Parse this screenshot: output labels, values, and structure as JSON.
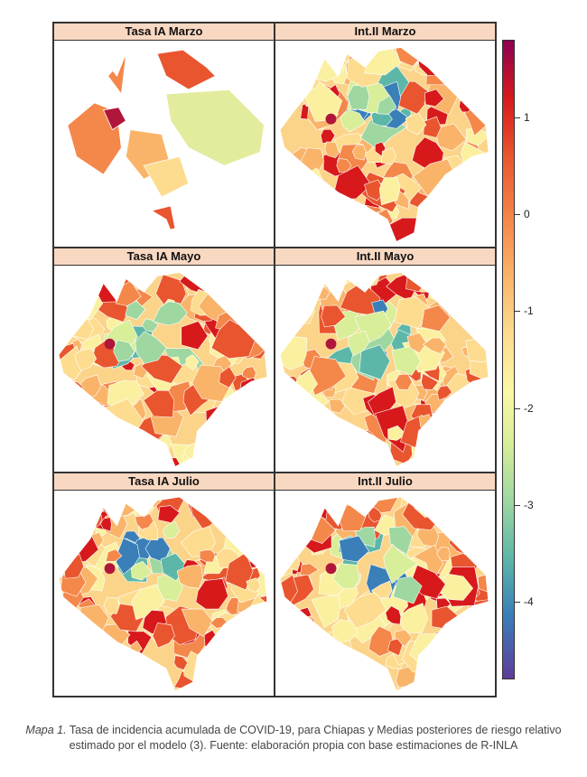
{
  "panels": [
    {
      "title": "Tasa IA Marzo",
      "variant": "marzo"
    },
    {
      "title": "Int.II Marzo",
      "variant": "full"
    },
    {
      "title": "Tasa IA Mayo",
      "variant": "full"
    },
    {
      "title": "Int.II Mayo",
      "variant": "full"
    },
    {
      "title": "Tasa IA Julio",
      "variant": "full"
    },
    {
      "title": "Int.II Julio",
      "variant": "full"
    }
  ],
  "legend": {
    "ticks": [
      "1",
      "0",
      "-1",
      "-2",
      "-3",
      "-4"
    ],
    "range": [
      -4.8,
      1.8
    ],
    "colors": [
      "#8e0152",
      "#d7191c",
      "#f4874a",
      "#fddc8f",
      "#d8ee99",
      "#5db7a8",
      "#3a7fb8",
      "#5e3c99"
    ]
  },
  "caption": {
    "lead": "Mapa 1.",
    "text": " Tasa de incidencia acumulada de COVID-19, para Chiapas y Medias posteriores de riesgo relativo estimado por el modelo (3). Fuente: elaboración propia con base estimaciones de R-INLA"
  }
}
